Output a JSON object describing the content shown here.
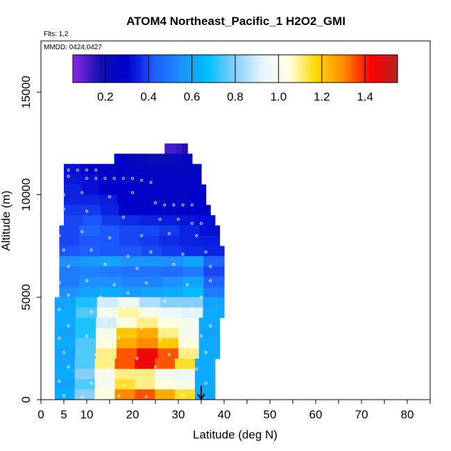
{
  "chart_data": {
    "type": "heatmap",
    "title": "ATOM4 Northeast_Pacific_1 H2O2_GMI",
    "subtitle_flights": "Flts: 1,2",
    "subtitle_dates": "MMDD: 0424,0427",
    "xlabel": "Latitude (deg N)",
    "ylabel": "Altitude (m)",
    "xlim": [
      0,
      85
    ],
    "ylim": [
      0,
      17500
    ],
    "x_ticks": [
      0,
      5,
      10,
      20,
      30,
      40,
      50,
      60,
      70,
      80
    ],
    "x_tick_labels": [
      "0",
      "5",
      "10",
      "20",
      "30",
      "40",
      "50",
      "60",
      "70",
      "80"
    ],
    "x_minor_ticks": [
      15,
      25,
      35,
      45,
      55,
      65,
      75,
      85
    ],
    "y_ticks": [
      0,
      5000,
      10000,
      15000
    ],
    "y_tick_labels": [
      "0",
      "5000",
      "10000",
      "15000"
    ],
    "colorbar": {
      "min": 0.05,
      "max": 1.55,
      "ticks": [
        0.2,
        0.4,
        0.6,
        0.8,
        1.0,
        1.2,
        1.4
      ],
      "tick_labels": [
        "0.2",
        "0.4",
        "0.6",
        "0.8",
        "1.0",
        "1.2",
        "1.4"
      ],
      "colors": [
        "#8a2be2",
        "#1010b0",
        "#0000cd",
        "#1e5aff",
        "#1e90ff",
        "#00bfff",
        "#87cefa",
        "#e6f5ff",
        "#ffffe0",
        "#ffd700",
        "#ff8c00",
        "#ff0000",
        "#b22222"
      ]
    },
    "grid": false,
    "legend": "colorbar-top",
    "arrow_marker": {
      "x": 35,
      "y": 0
    },
    "bands": [
      {
        "alt": [
          12000,
          12500
        ],
        "lat": [
          27,
          32
        ],
        "values": [
          0.12,
          0.12,
          0.14,
          0.16
        ]
      },
      {
        "alt": [
          11500,
          12000
        ],
        "lat": [
          16,
          33
        ],
        "values": [
          0.3,
          0.25,
          0.22,
          0.2,
          0.2,
          0.22,
          0.25
        ]
      },
      {
        "alt": [
          11000,
          11500
        ],
        "lat": [
          5,
          35
        ],
        "values": [
          0.32,
          0.3,
          0.28,
          0.27,
          0.26,
          0.25,
          0.25,
          0.25
        ]
      },
      {
        "alt": [
          10500,
          11000
        ],
        "lat": [
          5,
          35
        ],
        "values": [
          0.33,
          0.32,
          0.3,
          0.3,
          0.28,
          0.27,
          0.26,
          0.27
        ]
      },
      {
        "alt": [
          10000,
          10500
        ],
        "lat": [
          5,
          36
        ],
        "values": [
          0.35,
          0.32,
          0.3,
          0.3,
          0.28,
          0.27,
          0.26,
          0.27
        ]
      },
      {
        "alt": [
          9500,
          10000
        ],
        "lat": [
          5,
          36
        ],
        "values": [
          0.35,
          0.35,
          0.34,
          0.3,
          0.28,
          0.26,
          0.25,
          0.3
        ]
      },
      {
        "alt": [
          9000,
          9500
        ],
        "lat": [
          5,
          37
        ],
        "values": [
          0.38,
          0.38,
          0.35,
          0.3,
          0.3,
          0.28,
          0.28,
          0.3
        ]
      },
      {
        "alt": [
          8500,
          9000
        ],
        "lat": [
          5,
          38
        ],
        "values": [
          0.4,
          0.42,
          0.38,
          0.36,
          0.35,
          0.34,
          0.33,
          0.32
        ]
      },
      {
        "alt": [
          8000,
          8500
        ],
        "lat": [
          4,
          39
        ],
        "values": [
          0.4,
          0.45,
          0.42,
          0.4,
          0.4,
          0.38,
          0.35,
          0.32
        ]
      },
      {
        "alt": [
          7500,
          8000
        ],
        "lat": [
          4,
          39
        ],
        "values": [
          0.4,
          0.42,
          0.42,
          0.4,
          0.38,
          0.36,
          0.35,
          0.34
        ]
      },
      {
        "alt": [
          7000,
          7500
        ],
        "lat": [
          4,
          40
        ],
        "values": [
          0.42,
          0.44,
          0.42,
          0.42,
          0.4,
          0.38,
          0.36,
          0.35
        ]
      },
      {
        "alt": [
          6500,
          7000
        ],
        "lat": [
          4,
          40
        ],
        "values": [
          0.55,
          0.58,
          0.6,
          0.55,
          0.56,
          0.55,
          0.6,
          0.45
        ]
      },
      {
        "alt": [
          6000,
          6500
        ],
        "lat": [
          4,
          40
        ],
        "values": [
          0.5,
          0.52,
          0.5,
          0.48,
          0.48,
          0.47,
          0.5,
          0.4
        ]
      },
      {
        "alt": [
          5500,
          6000
        ],
        "lat": [
          4,
          40
        ],
        "values": [
          0.5,
          0.55,
          0.55,
          0.52,
          0.52,
          0.55,
          0.6,
          0.45
        ]
      },
      {
        "alt": [
          5000,
          5500
        ],
        "lat": [
          4,
          40
        ],
        "values": [
          0.55,
          0.6,
          0.62,
          0.58,
          0.6,
          0.62,
          0.66,
          0.5
        ]
      },
      {
        "alt": [
          4500,
          5000
        ],
        "lat": [
          3,
          40
        ],
        "values": [
          0.6,
          0.7,
          0.9,
          0.95,
          0.85,
          0.8,
          0.8,
          0.6
        ]
      },
      {
        "alt": [
          4000,
          4500
        ],
        "lat": [
          3,
          40
        ],
        "values": [
          0.62,
          0.75,
          1.0,
          1.08,
          1.0,
          0.95,
          0.92,
          0.62
        ]
      },
      {
        "alt": [
          3500,
          4000
        ],
        "lat": [
          3,
          39
        ],
        "values": [
          0.62,
          0.7,
          0.9,
          1.05,
          1.1,
          1.05,
          1.0,
          0.62
        ]
      },
      {
        "alt": [
          3000,
          3500
        ],
        "lat": [
          3,
          39
        ],
        "values": [
          0.6,
          0.7,
          1.0,
          1.2,
          1.25,
          1.1,
          1.0,
          0.6
        ]
      },
      {
        "alt": [
          2500,
          3000
        ],
        "lat": [
          3,
          39
        ],
        "values": [
          0.62,
          0.75,
          1.05,
          1.25,
          1.3,
          1.2,
          1.05,
          0.62
        ]
      },
      {
        "alt": [
          2000,
          2500
        ],
        "lat": [
          3,
          39
        ],
        "values": [
          0.6,
          0.75,
          1.1,
          1.35,
          1.45,
          1.35,
          1.1,
          0.62
        ]
      },
      {
        "alt": [
          1500,
          2000
        ],
        "lat": [
          3,
          38
        ],
        "values": [
          0.6,
          0.75,
          1.1,
          1.35,
          1.45,
          1.35,
          1.15,
          0.62
        ]
      },
      {
        "alt": [
          1000,
          1500
        ],
        "lat": [
          3,
          38
        ],
        "values": [
          0.62,
          0.8,
          1.0,
          1.1,
          1.1,
          1.0,
          0.95,
          0.62
        ]
      },
      {
        "alt": [
          500,
          1000
        ],
        "lat": [
          3,
          38
        ],
        "values": [
          0.6,
          0.75,
          1.0,
          1.15,
          1.1,
          1.05,
          1.0,
          0.62
        ]
      },
      {
        "alt": [
          0,
          500
        ],
        "lat": [
          3,
          38
        ],
        "values": [
          0.62,
          0.8,
          1.05,
          1.3,
          1.35,
          1.25,
          1.15,
          0.62
        ]
      }
    ],
    "points": [
      [
        4.5,
        11200
      ],
      [
        6,
        11200
      ],
      [
        8,
        11200
      ],
      [
        10,
        11200
      ],
      [
        12,
        11200
      ],
      [
        6,
        10900
      ],
      [
        10,
        10800
      ],
      [
        12,
        10800
      ],
      [
        14,
        10800
      ],
      [
        16,
        10800
      ],
      [
        18,
        10800
      ],
      [
        20,
        10800
      ],
      [
        22,
        10700
      ],
      [
        24,
        10600
      ],
      [
        5,
        10000
      ],
      [
        9,
        10100
      ],
      [
        15,
        9900
      ],
      [
        20,
        10100
      ],
      [
        25,
        9600
      ],
      [
        27,
        9500
      ],
      [
        29,
        9500
      ],
      [
        31,
        9500
      ],
      [
        33,
        9500
      ],
      [
        5,
        9300
      ],
      [
        10,
        9200
      ],
      [
        18,
        8900
      ],
      [
        26,
        8800
      ],
      [
        30,
        8800
      ],
      [
        33,
        8600
      ],
      [
        35,
        8600
      ],
      [
        4,
        8000
      ],
      [
        9,
        8200
      ],
      [
        15,
        7900
      ],
      [
        22,
        8000
      ],
      [
        28,
        8100
      ],
      [
        34,
        8000
      ],
      [
        5,
        7300
      ],
      [
        11,
        7300
      ],
      [
        19,
        7000
      ],
      [
        24,
        7200
      ],
      [
        31,
        7100
      ],
      [
        36,
        7200
      ],
      [
        6,
        6500
      ],
      [
        14,
        6600
      ],
      [
        21,
        6400
      ],
      [
        29,
        6600
      ],
      [
        37,
        6500
      ],
      [
        4,
        5700
      ],
      [
        10,
        5800
      ],
      [
        16,
        5600
      ],
      [
        23,
        5700
      ],
      [
        32,
        5600
      ],
      [
        37,
        5800
      ],
      [
        6,
        5100
      ],
      [
        13,
        5000
      ],
      [
        19,
        5200
      ],
      [
        27,
        4800
      ],
      [
        35,
        5000
      ],
      [
        4,
        4400
      ],
      [
        11,
        4300
      ],
      [
        18,
        4500
      ],
      [
        25,
        4400
      ],
      [
        33,
        4300
      ],
      [
        6,
        3600
      ],
      [
        14,
        3800
      ],
      [
        22,
        3500
      ],
      [
        30,
        3700
      ],
      [
        37,
        3600
      ],
      [
        4,
        3000
      ],
      [
        10,
        3100
      ],
      [
        17,
        3000
      ],
      [
        26,
        2900
      ],
      [
        35,
        3100
      ],
      [
        5,
        2300
      ],
      [
        12,
        2200
      ],
      [
        21,
        2000
      ],
      [
        28,
        2200
      ],
      [
        36,
        2300
      ],
      [
        6,
        1600
      ],
      [
        15,
        1500
      ],
      [
        25,
        1600
      ],
      [
        34,
        1500
      ],
      [
        4,
        900
      ],
      [
        11,
        800
      ],
      [
        18,
        700
      ],
      [
        27,
        900
      ],
      [
        36,
        800
      ],
      [
        5,
        200
      ],
      [
        9,
        150
      ],
      [
        17,
        200
      ],
      [
        23,
        150
      ],
      [
        31,
        200
      ]
    ]
  }
}
